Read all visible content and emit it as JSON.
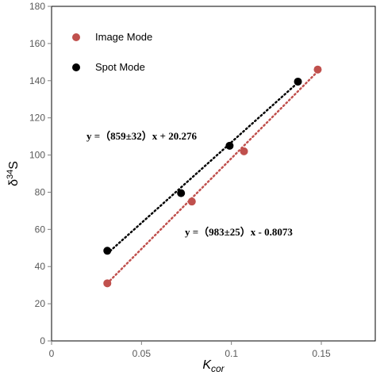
{
  "chart_data": {
    "type": "scatter",
    "xlabel": {
      "base": "K",
      "sub": "cor"
    },
    "ylabel": {
      "prefix": "δ",
      "sup": "34",
      "suffix": "S"
    },
    "xlim": [
      0,
      0.18
    ],
    "ylim": [
      0,
      180
    ],
    "x_ticks": [
      0,
      0.05,
      0.1,
      0.15
    ],
    "x_tick_labels": [
      "0",
      "0.05",
      "0.1",
      "0.15"
    ],
    "y_ticks": [
      0,
      20,
      40,
      60,
      80,
      100,
      120,
      140,
      160,
      180
    ],
    "y_tick_labels": [
      "0",
      "20",
      "40",
      "60",
      "80",
      "100",
      "120",
      "140",
      "160",
      "180"
    ],
    "grid": false,
    "legend_position": "top-left",
    "series": [
      {
        "name": "Image Mode",
        "color": "#c0504d",
        "trend_color": "#c0504d",
        "x": [
          0.031,
          0.078,
          0.107,
          0.148
        ],
        "y": [
          31,
          75,
          102,
          146
        ],
        "trendline": {
          "x_range": [
            0.031,
            0.148
          ],
          "y_range": [
            31,
            145
          ],
          "label": "y =（983±25）x - 0.8073"
        }
      },
      {
        "name": "Spot Mode",
        "color": "#000000",
        "trend_color": "#000000",
        "x": [
          0.031,
          0.072,
          0.099,
          0.137
        ],
        "y": [
          48.5,
          79.5,
          105,
          139.5
        ],
        "trendline": {
          "x_range": [
            0.031,
            0.137
          ],
          "y_range": [
            47,
            139
          ],
          "label": "y =（859±32）x + 20.276"
        }
      }
    ],
    "colors": {
      "axis": "#7f7f7f",
      "tick_text": "#595959",
      "frame": "#000000"
    }
  }
}
